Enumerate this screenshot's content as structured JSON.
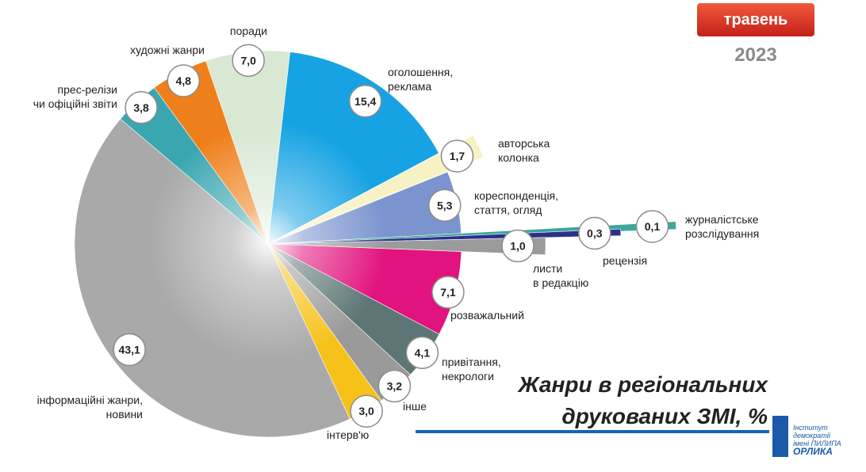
{
  "header": {
    "month": "травень",
    "year": "2023"
  },
  "title": {
    "line1": "Жанри в регіональних",
    "line2": "друкованих ЗМІ, %"
  },
  "logo": {
    "line1": "Інститут демократії",
    "line2": "імені ПИЛИПА",
    "line3": "ОРЛИКА"
  },
  "chart_data": {
    "type": "pie",
    "title": "Жанри в регіональних друкованих ЗМІ, %",
    "unit": "%",
    "slices": [
      {
        "label": "оголошення, реклама",
        "value": 15.4,
        "value_text": "15,4",
        "color": "#17a3e3"
      },
      {
        "label": "авторська колонка",
        "value": 1.7,
        "value_text": "1,7",
        "color": "#f6f2c4",
        "exploded": true
      },
      {
        "label": "кореспонденція, стаття, огляд",
        "value": 5.3,
        "value_text": "5,3",
        "color": "#7b94cf"
      },
      {
        "label": "журналістське розслідування",
        "value": 0.1,
        "value_text": "0,1",
        "color": "#3aa89a",
        "exploded": true
      },
      {
        "label": "рецензія",
        "value": 0.3,
        "value_text": "0,3",
        "color": "#2e2e8c",
        "exploded": true
      },
      {
        "label": "листи в редакцію",
        "value": 1.0,
        "value_text": "1,0",
        "color": "#9b9b9b",
        "exploded": true
      },
      {
        "label": "розважальний",
        "value": 7.1,
        "value_text": "7,1",
        "color": "#e2127e"
      },
      {
        "label": "привітання, некрологи",
        "value": 4.1,
        "value_text": "4,1",
        "color": "#5d7575"
      },
      {
        "label": "інше",
        "value": 3.2,
        "value_text": "3,2",
        "color": "#9a9a9a"
      },
      {
        "label": "інтерв'ю",
        "value": 3.0,
        "value_text": "3,0",
        "color": "#f6c21a"
      },
      {
        "label": "інформаційні жанри, новини",
        "value": 43.1,
        "value_text": "43,1",
        "color": "#a9a9a9"
      },
      {
        "label": "прес-релізи чи офіційні звіти",
        "value": 3.8,
        "value_text": "3,8",
        "color": "#3aa6b0"
      },
      {
        "label": "художні жанри",
        "value": 4.8,
        "value_text": "4,8",
        "color": "#ef7f1a"
      },
      {
        "label": "поради",
        "value": 7.0,
        "value_text": "7,0",
        "color": "#d8e8d2"
      }
    ]
  }
}
